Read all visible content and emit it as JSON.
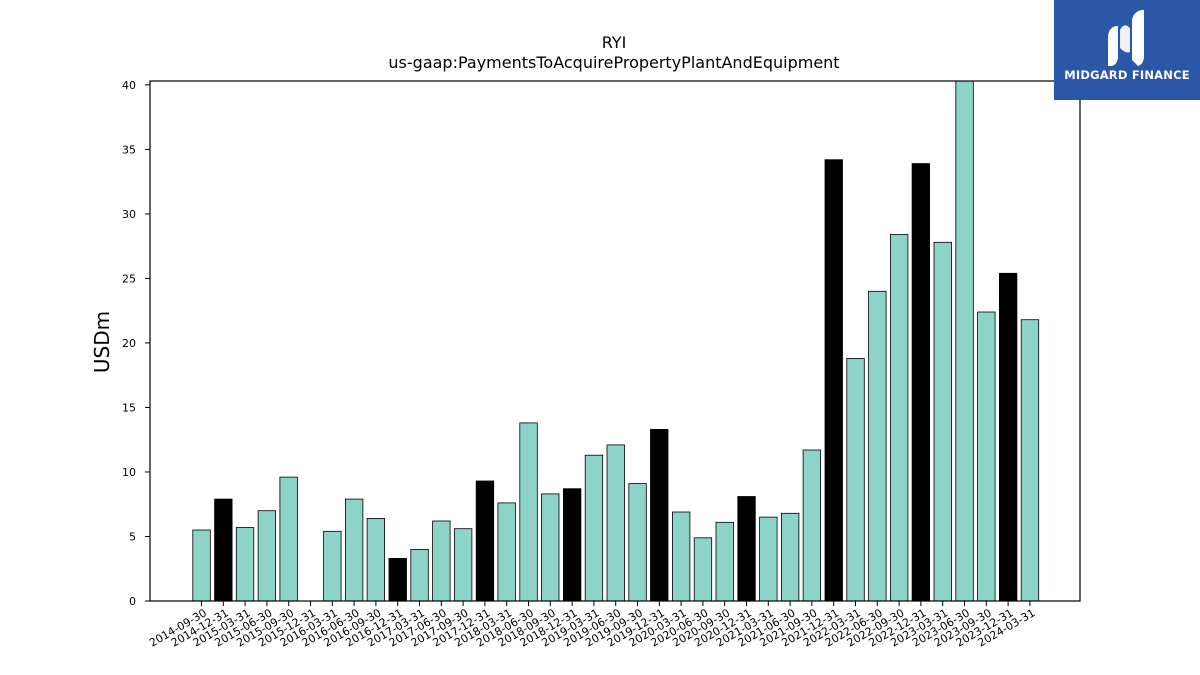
{
  "brand": {
    "name": "MIDGARD FINANCE",
    "logo_icon": "midgard-m-logo-icon",
    "background_color": "#2b57a7"
  },
  "chart_data": {
    "type": "bar",
    "title": "RYI",
    "subtitle": "us-gaap:PaymentsToAcquirePropertyPlantAndEquipment",
    "xlabel": "",
    "ylabel": "USDm",
    "ylim": [
      0,
      40.3
    ],
    "yticks": [
      0,
      5,
      10,
      15,
      20,
      25,
      30,
      35,
      40
    ],
    "grid": false,
    "legend": "none",
    "colors": {
      "quarter": "#8dd3c7",
      "year_end": "#000000",
      "edge": "#000000"
    },
    "categories": [
      "2014-09-30",
      "2014-12-31",
      "2015-03-31",
      "2015-06-30",
      "2015-09-30",
      "2015-12-31",
      "2016-03-31",
      "2016-06-30",
      "2016-09-30",
      "2016-12-31",
      "2017-03-31",
      "2017-06-30",
      "2017-09-30",
      "2017-12-31",
      "2018-03-31",
      "2018-06-30",
      "2018-09-30",
      "2018-12-31",
      "2019-03-31",
      "2019-06-30",
      "2019-09-30",
      "2019-12-31",
      "2020-03-31",
      "2020-06-30",
      "2020-09-30",
      "2020-12-31",
      "2021-03-31",
      "2021-06-30",
      "2021-09-30",
      "2021-12-31",
      "2022-03-31",
      "2022-06-30",
      "2022-09-30",
      "2022-12-31",
      "2023-03-31",
      "2023-06-30",
      "2023-09-30",
      "2023-12-31",
      "2024-03-31"
    ],
    "values": [
      5.5,
      7.9,
      5.7,
      7.0,
      9.6,
      null,
      5.4,
      7.9,
      6.4,
      3.3,
      4.0,
      6.2,
      5.6,
      9.3,
      7.6,
      13.8,
      8.3,
      8.7,
      11.3,
      12.1,
      9.1,
      13.3,
      6.9,
      4.9,
      6.1,
      8.1,
      6.5,
      6.8,
      11.7,
      34.2,
      18.8,
      24.0,
      28.4,
      33.9,
      27.8,
      40.5,
      22.4,
      25.4,
      21.8
    ],
    "year_end": [
      false,
      true,
      false,
      false,
      false,
      true,
      false,
      false,
      false,
      true,
      false,
      false,
      false,
      true,
      false,
      false,
      false,
      true,
      false,
      false,
      false,
      true,
      false,
      false,
      false,
      true,
      false,
      false,
      false,
      true,
      false,
      false,
      false,
      true,
      false,
      false,
      false,
      true,
      false
    ]
  }
}
